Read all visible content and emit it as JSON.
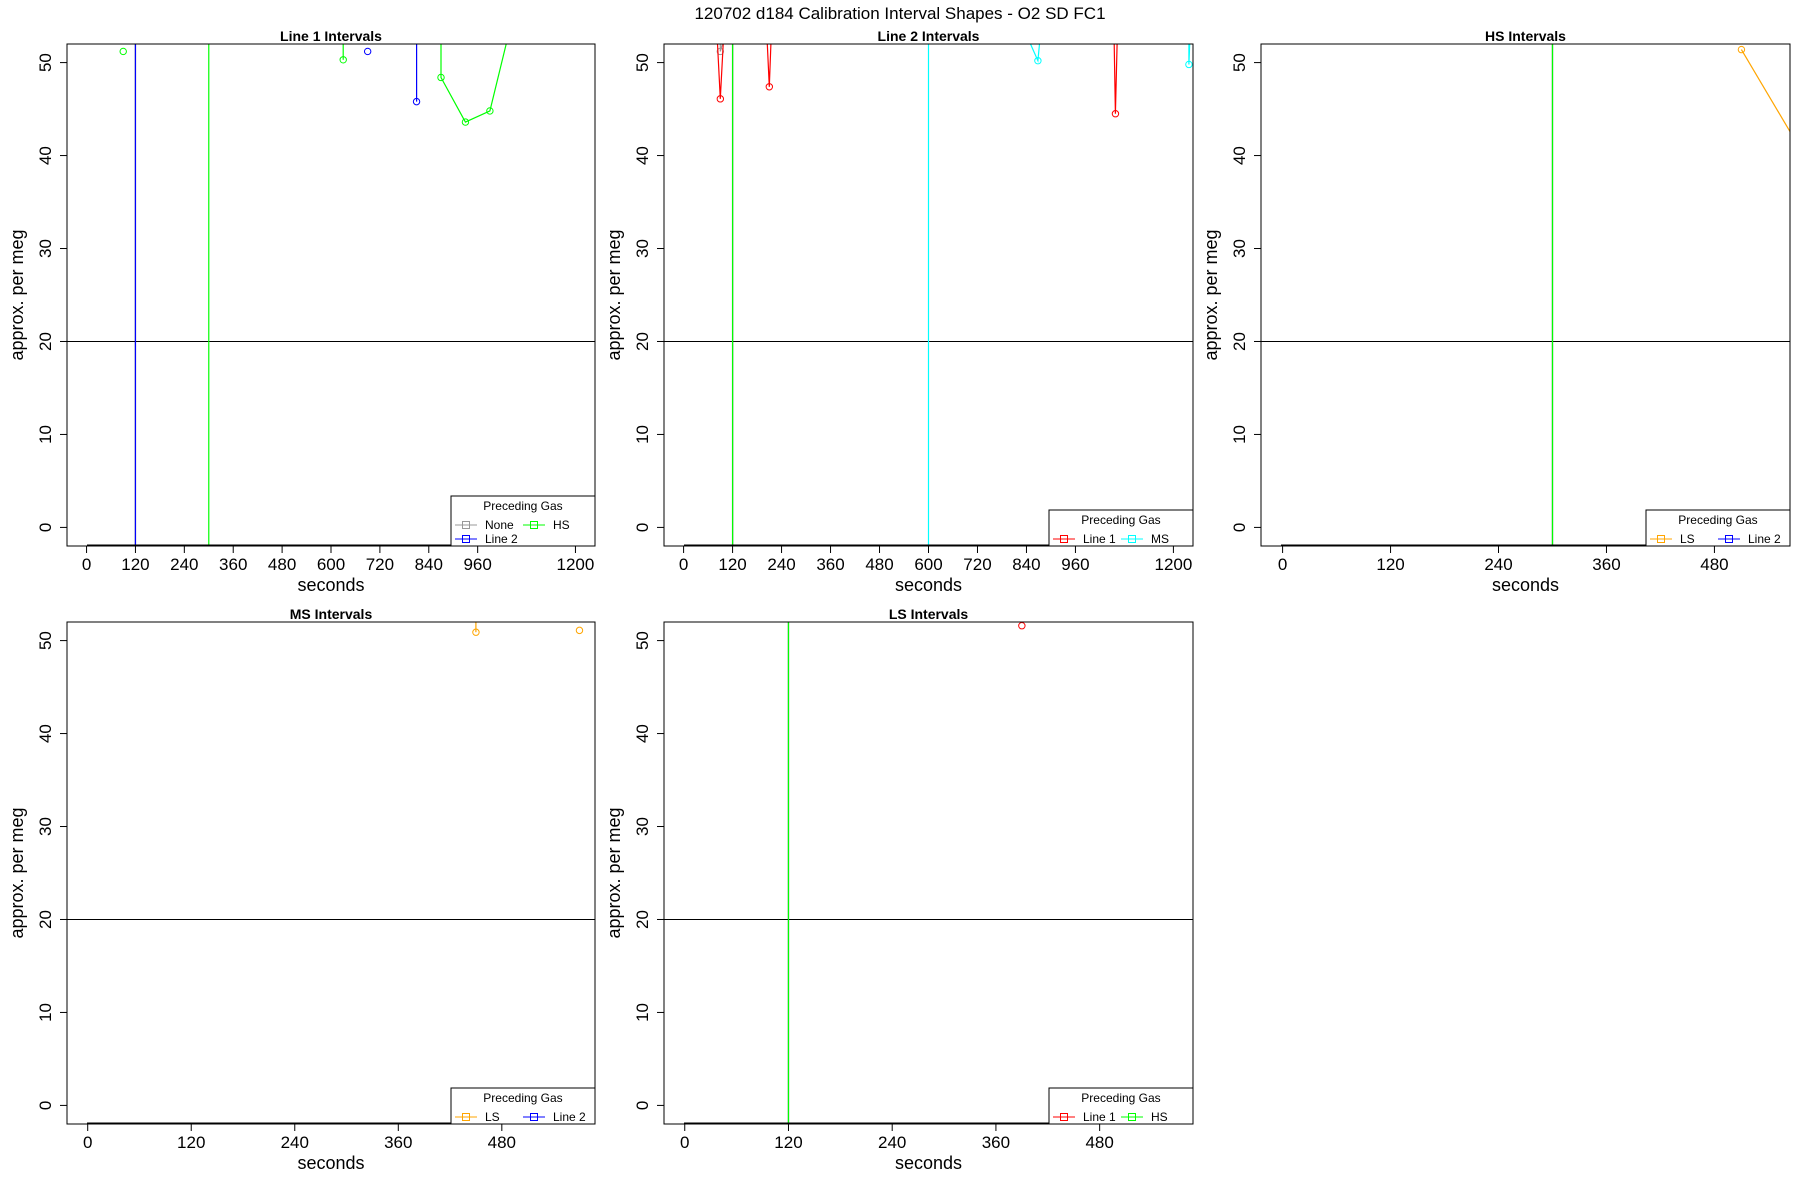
{
  "figure": {
    "title": "120702   d184   Calibration Interval Shapes - O2 SD FC1"
  },
  "chart_data": [
    {
      "type": "line",
      "title": "Line 1 Intervals",
      "xlabel": "seconds",
      "ylabel": "approx. per meg",
      "xlim": [
        -48,
        1248
      ],
      "ylim": [
        -2,
        52
      ],
      "xticks": [
        0,
        120,
        240,
        360,
        480,
        600,
        720,
        840,
        960,
        1200
      ],
      "yticks": [
        0,
        10,
        20,
        30,
        40,
        50
      ],
      "hlines": [
        {
          "y": 20,
          "color": "#000000"
        }
      ],
      "vlines": [
        {
          "x": 120,
          "color": "#000000"
        },
        {
          "x": 120,
          "color": "#0000ff"
        },
        {
          "x": 300,
          "color": "#00ff00"
        }
      ],
      "legend": {
        "title": "Preceding Gas",
        "position": "bottom-right",
        "columns": 2,
        "entries": [
          {
            "label": "None",
            "color": "#999999"
          },
          {
            "label": "HS",
            "color": "#00ff00"
          },
          {
            "label": "Line 2",
            "color": "#0000ff"
          }
        ]
      },
      "series": [
        {
          "color": "#00ff00",
          "points": [
            [
              90,
              51.2
            ]
          ]
        },
        {
          "color": "#00ff00",
          "points": [
            [
              630,
              52
            ],
            [
              630,
              50.3
            ]
          ]
        },
        {
          "color": "#0000ff",
          "points": [
            [
              690,
              51.2
            ]
          ]
        },
        {
          "color": "#0000ff",
          "points": [
            [
              810,
              52
            ],
            [
              810,
              45.8
            ]
          ]
        },
        {
          "color": "#00ff00",
          "points": [
            [
              870,
              52
            ],
            [
              870,
              48.4
            ],
            [
              930,
              43.6
            ],
            [
              990,
              44.8
            ],
            [
              1030,
              52
            ]
          ]
        }
      ]
    },
    {
      "type": "line",
      "title": "Line 2 Intervals",
      "xlabel": "seconds",
      "ylabel": "approx. per meg",
      "xlim": [
        -48,
        1248
      ],
      "ylim": [
        -2,
        52
      ],
      "xticks": [
        0,
        120,
        240,
        360,
        480,
        600,
        720,
        840,
        960,
        1200
      ],
      "yticks": [
        0,
        10,
        20,
        30,
        40,
        50
      ],
      "hlines": [
        {
          "y": 20,
          "color": "#000000"
        }
      ],
      "vlines": [
        {
          "x": 120,
          "color": "#000000"
        },
        {
          "x": 120,
          "color": "#00ff00"
        },
        {
          "x": 600,
          "color": "#00ffff"
        }
      ],
      "legend": {
        "title": "Preceding Gas",
        "position": "bottom-right",
        "columns": 2,
        "entries": [
          {
            "label": "Line 1",
            "color": "#ff0000"
          },
          {
            "label": "MS",
            "color": "#00ffff"
          }
        ]
      },
      "series": [
        {
          "color": "#999999",
          "points": [
            [
              90,
              52
            ],
            [
              90,
              51.2
            ],
            [
              95,
              52
            ]
          ]
        },
        {
          "color": "#ff0000",
          "points": [
            [
              83,
              52
            ],
            [
              90,
              46.1
            ],
            [
              97,
              52
            ]
          ]
        },
        {
          "color": "#ff0000",
          "points": [
            [
              205,
              52
            ],
            [
              210,
              47.4
            ],
            [
              214,
              52
            ]
          ]
        },
        {
          "color": "#00ffff",
          "points": [
            [
              850,
              52
            ],
            [
              868,
              50.2
            ],
            [
              872,
              52
            ]
          ]
        },
        {
          "color": "#ff0000",
          "points": [
            [
              1055,
              52
            ],
            [
              1058,
              44.5
            ],
            [
              1062,
              52
            ]
          ]
        },
        {
          "color": "#00ffff",
          "points": [
            [
              1238,
              52
            ],
            [
              1238,
              49.8
            ],
            [
              1240,
              52
            ]
          ]
        }
      ]
    },
    {
      "type": "line",
      "title": "HS Intervals",
      "xlabel": "seconds",
      "ylabel": "approx. per meg",
      "xlim": [
        -24,
        564
      ],
      "ylim": [
        -2,
        52
      ],
      "xticks": [
        0,
        120,
        240,
        360,
        480
      ],
      "yticks": [
        0,
        10,
        20,
        30,
        40,
        50
      ],
      "hlines": [
        {
          "y": 20,
          "color": "#000000"
        }
      ],
      "vlines": [
        {
          "x": 300,
          "color": "#000000"
        },
        {
          "x": 300,
          "color": "#00ff00"
        }
      ],
      "legend": {
        "title": "Preceding Gas",
        "position": "bottom-right",
        "columns": 2,
        "entries": [
          {
            "label": "LS",
            "color": "#ffa500"
          },
          {
            "label": "Line 2",
            "color": "#0000ff"
          }
        ]
      },
      "series": [
        {
          "color": "#ffa500",
          "points": [
            [
              510,
              51.4
            ],
            [
              570,
              41.6
            ]
          ]
        }
      ]
    },
    {
      "type": "line",
      "title": "MS Intervals",
      "xlabel": "seconds",
      "ylabel": "approx. per meg",
      "xlim": [
        -24,
        588
      ],
      "ylim": [
        -2,
        52
      ],
      "xticks": [
        0,
        120,
        240,
        360,
        480
      ],
      "yticks": [
        0,
        10,
        20,
        30,
        40,
        50
      ],
      "hlines": [
        {
          "y": 20,
          "color": "#000000"
        }
      ],
      "vlines": [],
      "legend": {
        "title": "Preceding Gas",
        "position": "bottom-right",
        "columns": 2,
        "entries": [
          {
            "label": "LS",
            "color": "#ffa500"
          },
          {
            "label": "Line 2",
            "color": "#0000ff"
          }
        ]
      },
      "series": [
        {
          "color": "#ffa500",
          "points": [
            [
              450,
              52
            ],
            [
              450,
              50.9
            ]
          ]
        },
        {
          "color": "#ffa500",
          "points": [
            [
              570,
              51.1
            ]
          ]
        }
      ]
    },
    {
      "type": "line",
      "title": "LS Intervals",
      "xlabel": "seconds",
      "ylabel": "approx. per meg",
      "xlim": [
        -24,
        588
      ],
      "ylim": [
        -2,
        52
      ],
      "xticks": [
        0,
        120,
        240,
        360,
        480
      ],
      "yticks": [
        0,
        10,
        20,
        30,
        40,
        50
      ],
      "hlines": [
        {
          "y": 20,
          "color": "#000000"
        }
      ],
      "vlines": [
        {
          "x": 120,
          "color": "#000000"
        },
        {
          "x": 120,
          "color": "#00ff00"
        }
      ],
      "legend": {
        "title": "Preceding Gas",
        "position": "bottom-right",
        "columns": 2,
        "entries": [
          {
            "label": "Line 1",
            "color": "#ff0000"
          },
          {
            "label": "HS",
            "color": "#00ff00"
          }
        ]
      },
      "series": [
        {
          "color": "#ff0000",
          "points": [
            [
              30,
              52
            ]
          ]
        },
        {
          "color": "#ff0000",
          "points": [
            [
              390,
              51.6
            ]
          ]
        }
      ]
    }
  ]
}
